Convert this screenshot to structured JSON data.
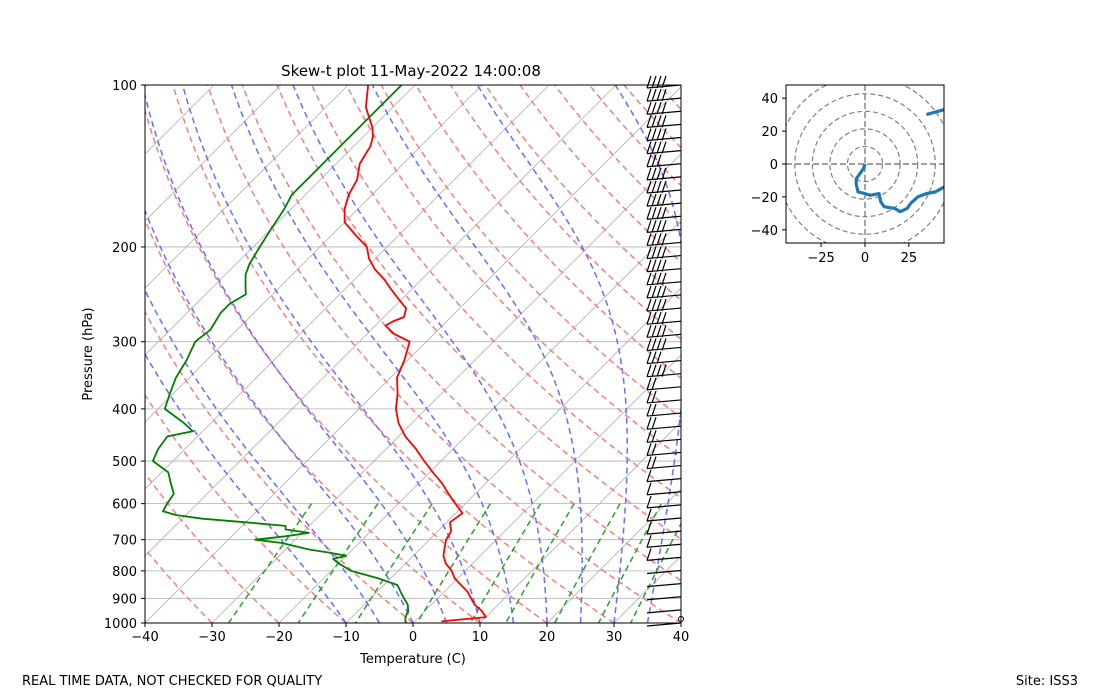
{
  "footer": {
    "left": "REAL TIME DATA, NOT CHECKED FOR QUALITY",
    "right": "Site: ISS3"
  },
  "colors": {
    "temperature": "#ff0000",
    "dewpoint": "#008000",
    "dry_adiabats": "#f08080",
    "moist_adiabats": "#6b6bff",
    "mixing_ratio": "#2ca02c",
    "isotherms": "#b0b0b0",
    "hodograph": "#1f77b4",
    "barbs": "#000000"
  },
  "chart_data": [
    {
      "type": "line",
      "subtype": "skew-t",
      "title": "Skew-t plot 11-May-2022 14:00:08",
      "xlabel": "Temperature (C)",
      "ylabel": "Pressure (hPa)",
      "xlim": [
        -40,
        40
      ],
      "ylim": [
        1000,
        100
      ],
      "yscale": "log",
      "xticks": [
        -40,
        -30,
        -20,
        -10,
        0,
        10,
        20,
        30,
        40
      ],
      "yticks": [
        1000,
        900,
        800,
        700,
        600,
        500,
        400,
        300,
        200,
        100
      ],
      "grid": true,
      "series": [
        {
          "role": "temperature",
          "pressure": [
            993,
            975,
            950,
            925,
            900,
            875,
            850,
            825,
            800,
            775,
            750,
            725,
            700,
            675,
            650,
            625,
            600,
            575,
            550,
            525,
            500,
            475,
            450,
            425,
            400,
            375,
            350,
            325,
            300,
            290,
            280,
            275,
            270,
            260,
            250,
            240,
            230,
            220,
            210,
            200,
            190,
            180,
            170,
            160,
            150,
            140,
            130,
            125,
            120,
            110,
            100
          ],
          "values": [
            4,
            10,
            8.5,
            6.5,
            5,
            3.5,
            1.5,
            -0.5,
            -2,
            -4,
            -5.5,
            -6.5,
            -7.5,
            -8,
            -9.5,
            -9,
            -11.5,
            -14,
            -16.5,
            -19.5,
            -22.5,
            -25.5,
            -29,
            -32,
            -34.5,
            -36.5,
            -39,
            -40.5,
            -42.5,
            -46,
            -48.5,
            -48,
            -47,
            -48,
            -50.5,
            -53,
            -55.5,
            -58.5,
            -61,
            -63,
            -66.5,
            -70,
            -72,
            -73.5,
            -74.5,
            -76.5,
            -77.5,
            -78.5,
            -80,
            -84,
            -87
          ]
        },
        {
          "role": "dewpoint",
          "pressure": [
            1000,
            990,
            975,
            950,
            925,
            900,
            875,
            850,
            825,
            800,
            775,
            760,
            750,
            740,
            730,
            720,
            710,
            700,
            690,
            680,
            670,
            660,
            650,
            640,
            630,
            620,
            600,
            575,
            550,
            525,
            500,
            475,
            450,
            440,
            425,
            400,
            375,
            350,
            325,
            300,
            285,
            275,
            265,
            255,
            245,
            235,
            225,
            215,
            200,
            185,
            170,
            160,
            150,
            140,
            130,
            120,
            110,
            100
          ],
          "values": [
            -1,
            -1.5,
            -2,
            -2.5,
            -3.5,
            -5,
            -6.5,
            -8,
            -12,
            -17,
            -20,
            -21.5,
            -20,
            -23,
            -26.5,
            -29,
            -31.5,
            -36,
            -32,
            -29,
            -33,
            -33.5,
            -40,
            -47,
            -51.5,
            -54,
            -54.5,
            -55,
            -57,
            -59,
            -63,
            -64,
            -64.5,
            -61.5,
            -64,
            -69,
            -70.5,
            -72,
            -73,
            -74.5,
            -74,
            -74.5,
            -75,
            -75,
            -74,
            -75.5,
            -77,
            -78,
            -79,
            -80,
            -81,
            -82,
            -82,
            -82,
            -82,
            -82,
            -82,
            -82
          ]
        }
      ]
    },
    {
      "type": "line",
      "subtype": "hodograph",
      "xlim": [
        -45,
        45
      ],
      "ylim": [
        -48,
        48
      ],
      "xticks": [
        -25,
        0,
        25
      ],
      "yticks": [
        -40,
        -20,
        0,
        20,
        40
      ],
      "range_rings": [
        10,
        20,
        30,
        40,
        50
      ],
      "series": [
        {
          "role": "hodograph",
          "u": [
            0,
            -1,
            -3,
            -5,
            -5,
            -4,
            0,
            3,
            8,
            9,
            11,
            17,
            20,
            24,
            26,
            30,
            35,
            40,
            45
          ],
          "v": [
            0,
            -3,
            -6,
            -9,
            -12,
            -17,
            -18,
            -19,
            -18,
            -23,
            -26,
            -27,
            -29,
            -27,
            -24,
            -20,
            -18,
            -17,
            -14
          ]
        },
        {
          "role": "hodograph-upper",
          "u": [
            35,
            45
          ],
          "v": [
            30,
            33
          ]
        }
      ]
    }
  ]
}
